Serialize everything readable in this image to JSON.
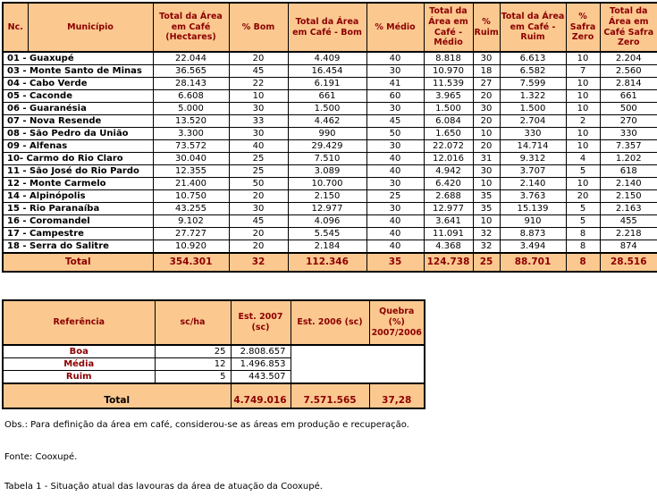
{
  "colors": {
    "header_bg": "#FBC890",
    "header_text": "#8B0000",
    "border": "#000000",
    "row_bg": "#FFFFFF"
  },
  "table1": {
    "headers": [
      "Nc.",
      "Município",
      "Total da Área em Café (Hectares)",
      "% Bom",
      "Total da Área em Café - Bom",
      "% Médio",
      "Total da Área em Café - Médio",
      "% Ruim",
      "Total da Área em Café - Ruim",
      "% Safra Zero",
      "Total da Área em Café Safra Zero"
    ],
    "rows": [
      [
        "01 - Guaxupé",
        "22.044",
        "20",
        "4.409",
        "40",
        "8.818",
        "30",
        "6.613",
        "10",
        "2.204"
      ],
      [
        "03 - Monte Santo de Minas",
        "36.565",
        "45",
        "16.454",
        "30",
        "10.970",
        "18",
        "6.582",
        "7",
        "2.560"
      ],
      [
        "04 - Cabo Verde",
        "28.143",
        "22",
        "6.191",
        "41",
        "11.539",
        "27",
        "7.599",
        "10",
        "2.814"
      ],
      [
        "05 - Caconde",
        "6.608",
        "10",
        "661",
        "60",
        "3.965",
        "20",
        "1.322",
        "10",
        "661"
      ],
      [
        "06 - Guaranésia",
        "5.000",
        "30",
        "1.500",
        "30",
        "1.500",
        "30",
        "1.500",
        "10",
        "500"
      ],
      [
        "07 - Nova Resende",
        "13.520",
        "33",
        "4.462",
        "45",
        "6.084",
        "20",
        "2.704",
        "2",
        "270"
      ],
      [
        "08 - São Pedro da União",
        "3.300",
        "30",
        "990",
        "50",
        "1.650",
        "10",
        "330",
        "10",
        "330"
      ],
      [
        "09 - Alfenas",
        "73.572",
        "40",
        "29.429",
        "30",
        "22.072",
        "20",
        "14.714",
        "10",
        "7.357"
      ],
      [
        "10- Carmo do Rio Claro",
        "30.040",
        "25",
        "7.510",
        "40",
        "12.016",
        "31",
        "9.312",
        "4",
        "1.202"
      ],
      [
        "11 - São José do Rio Pardo",
        "12.355",
        "25",
        "3.089",
        "40",
        "4.942",
        "30",
        "3.707",
        "5",
        "618"
      ],
      [
        "12 - Monte Carmelo",
        "21.400",
        "50",
        "10.700",
        "30",
        "6.420",
        "10",
        "2.140",
        "10",
        "2.140"
      ],
      [
        "14 - Alpinópolis",
        "10.750",
        "20",
        "2.150",
        "25",
        "2.688",
        "35",
        "3.763",
        "20",
        "2.150"
      ],
      [
        "15 - Rio Paranaíba",
        "43.255",
        "30",
        "12.977",
        "30",
        "12.977",
        "35",
        "15.139",
        "5",
        "2.163"
      ],
      [
        "16 - Coromandel",
        "9.102",
        "45",
        "4.096",
        "40",
        "3.641",
        "10",
        "910",
        "5",
        "455"
      ],
      [
        "17 - Campestre",
        "27.727",
        "20",
        "5.545",
        "40",
        "11.091",
        "32",
        "8.873",
        "8",
        "2.218"
      ],
      [
        "18 - Serra do Salitre",
        "10.920",
        "20",
        "2.184",
        "40",
        "4.368",
        "32",
        "3.494",
        "8",
        "874"
      ]
    ],
    "total_row": [
      "Total",
      "354.301",
      "32",
      "112.346",
      "35",
      "124.738",
      "25",
      "88.701",
      "8",
      "28.516"
    ]
  },
  "table2": {
    "headers": [
      "Referência",
      "sc/ha",
      "Est. 2007 (sc)",
      "Est. 2006 (sc)",
      "Quebra (%) 2007/2006"
    ],
    "rows": [
      [
        "Boa",
        "25",
        "2.808.657"
      ],
      [
        "Média",
        "12",
        "1.496.853"
      ],
      [
        "Ruim",
        "5",
        "443.507"
      ]
    ],
    "total_row": {
      "label": "Total",
      "sc_ha": "",
      "est_2007": "4.749.016",
      "est_2006": "7.571.565",
      "quebra": "37,28"
    }
  },
  "notes": {
    "obs": "Obs.: Para definição da área em café, considerou-se as áreas em produção e recuperação.",
    "fonte": "Fonte: Cooxupé.",
    "caption": "Tabela 1 - Situação atual das lavouras da área de atuação da Cooxupé."
  }
}
